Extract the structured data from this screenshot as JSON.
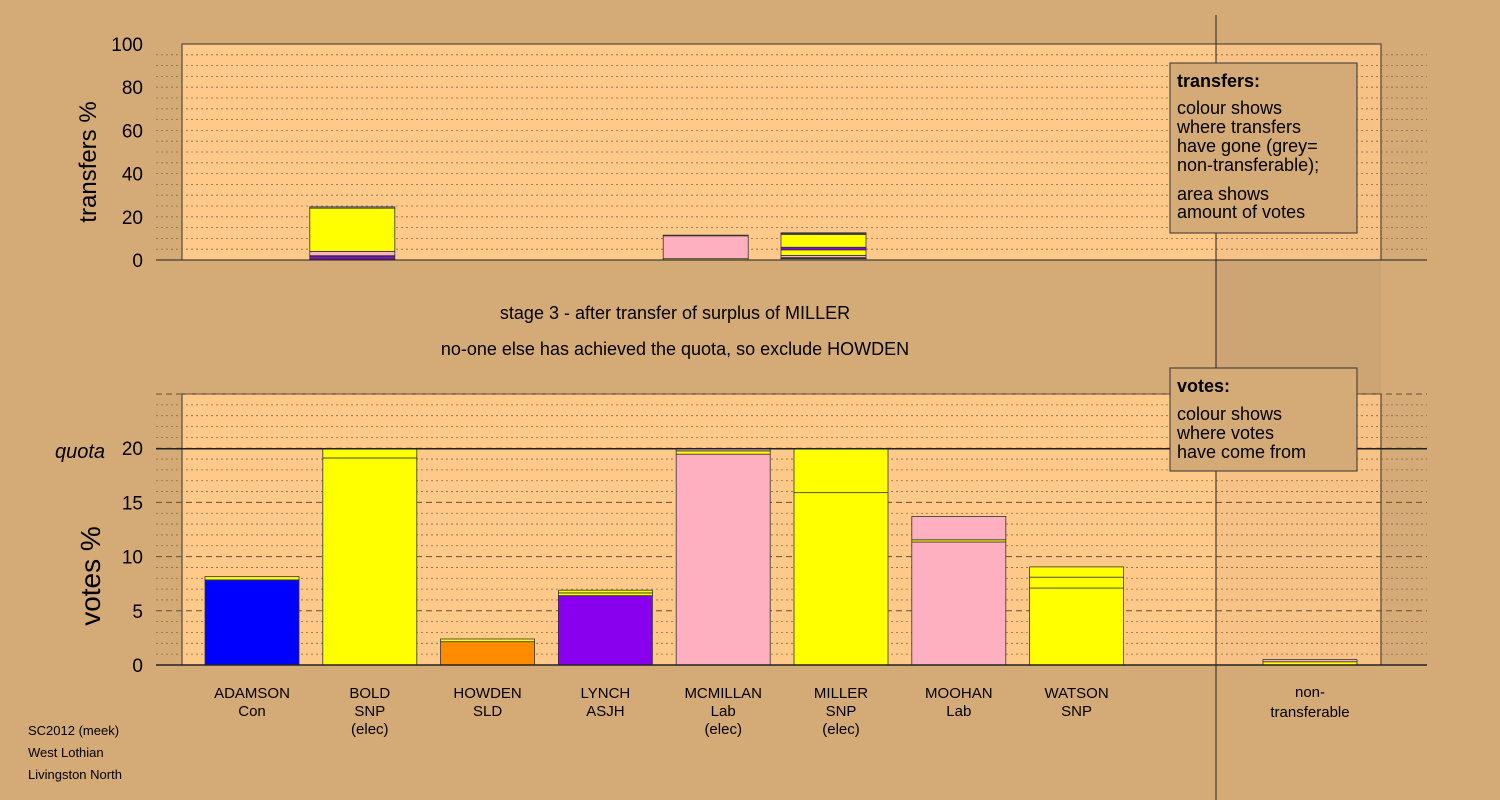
{
  "chart_data": [
    {
      "type": "bar",
      "stacked": true,
      "ylabel": "transfers %",
      "ylim": [
        0,
        100
      ],
      "yticks": [
        "0",
        "20",
        "40",
        "60",
        "80",
        "100"
      ],
      "grid": true,
      "legend": {
        "title": "transfers:",
        "lines_a": [
          "colour shows",
          "where transfers",
          "have gone (grey=",
          "non-transferable);"
        ],
        "lines_b": [
          "area shows",
          "amount of votes"
        ]
      },
      "bars": [
        {
          "candidate": "BOLD",
          "segments": [
            {
              "value": 0.4,
              "color": "#0000ff"
            },
            {
              "value": 1.2,
              "color": "#8800ee"
            },
            {
              "value": 0.4,
              "color": "#ff9900"
            },
            {
              "value": 2.0,
              "color": "#ffb0c0"
            },
            {
              "value": 20.0,
              "color": "#ffff00"
            },
            {
              "value": 0.6,
              "color": "#a0a0a0"
            }
          ]
        },
        {
          "candidate": "MCMILLAN",
          "segments": [
            {
              "value": 0.6,
              "color": "#ffff00"
            },
            {
              "value": 10.6,
              "color": "#ffb0c0"
            },
            {
              "value": 0.3,
              "color": "#a0a0a0"
            }
          ]
        },
        {
          "candidate": "MILLER",
          "segments": [
            {
              "value": 0.6,
              "color": "#ffff00"
            },
            {
              "value": 0.5,
              "color": "#0000ff"
            },
            {
              "value": 1.0,
              "color": "#ffb0c0"
            },
            {
              "value": 2.6,
              "color": "#ffff00"
            },
            {
              "value": 1.2,
              "color": "#8800ee"
            },
            {
              "value": 5.9,
              "color": "#ffff00"
            },
            {
              "value": 0.5,
              "color": "#ffb0c0"
            },
            {
              "value": 0.3,
              "color": "#a0a0a0"
            }
          ]
        }
      ]
    },
    {
      "type": "bar",
      "stacked": true,
      "ylabel": "votes %",
      "ylim": [
        0,
        25
      ],
      "yticks": [
        "0",
        "5",
        "10",
        "15",
        "20"
      ],
      "quota": 19.95,
      "quota_label": "quota",
      "grid": true,
      "legend": {
        "title": "votes:",
        "lines": [
          "colour shows",
          "where votes",
          "have come from"
        ]
      },
      "categories": [
        {
          "name": "ADAMSON",
          "party": "Con",
          "status": ""
        },
        {
          "name": "BOLD",
          "party": "SNP",
          "status": "(elec)"
        },
        {
          "name": "HOWDEN",
          "party": "SLD",
          "status": ""
        },
        {
          "name": "LYNCH",
          "party": "ASJH",
          "status": ""
        },
        {
          "name": "MCMILLAN",
          "party": "Lab",
          "status": "(elec)"
        },
        {
          "name": "MILLER",
          "party": "SNP",
          "status": "(elec)"
        },
        {
          "name": "MOOHAN",
          "party": "Lab",
          "status": ""
        },
        {
          "name": "WATSON",
          "party": "SNP",
          "status": ""
        }
      ],
      "nontransferable_label": [
        "non-",
        "transferable"
      ],
      "bars": [
        {
          "candidate": "ADAMSON",
          "segments": [
            {
              "value": 7.85,
              "color": "#0000ff"
            },
            {
              "value": 0.3,
              "color": "#ffff00"
            }
          ]
        },
        {
          "candidate": "BOLD",
          "segments": [
            {
              "value": 19.1,
              "color": "#ffff00"
            },
            {
              "value": 0.85,
              "color": "#ffff00"
            }
          ]
        },
        {
          "candidate": "HOWDEN",
          "segments": [
            {
              "value": 2.15,
              "color": "#ff8c00"
            },
            {
              "value": 0.25,
              "color": "#ffff00"
            }
          ]
        },
        {
          "candidate": "LYNCH",
          "segments": [
            {
              "value": 6.4,
              "color": "#8800ee"
            },
            {
              "value": 0.25,
              "color": "#ffff00"
            },
            {
              "value": 0.25,
              "color": "#ffff00"
            }
          ]
        },
        {
          "candidate": "MCMILLAN",
          "segments": [
            {
              "value": 19.45,
              "color": "#ffb0c0"
            },
            {
              "value": 0.3,
              "color": "#ffff00"
            },
            {
              "value": 0.2,
              "color": "#ffb0c0"
            }
          ]
        },
        {
          "candidate": "MILLER",
          "segments": [
            {
              "value": 15.9,
              "color": "#ffff00"
            },
            {
              "value": 4.05,
              "color": "#ffff00"
            }
          ]
        },
        {
          "candidate": "MOOHAN",
          "segments": [
            {
              "value": 11.35,
              "color": "#ffb0c0"
            },
            {
              "value": 0.2,
              "color": "#ffff00"
            },
            {
              "value": 2.15,
              "color": "#ffb0c0"
            }
          ]
        },
        {
          "candidate": "WATSON",
          "segments": [
            {
              "value": 7.1,
              "color": "#ffff00"
            },
            {
              "value": 1.0,
              "color": "#ffff00"
            },
            {
              "value": 0.95,
              "color": "#ffff00"
            }
          ]
        }
      ],
      "nontransferable": {
        "segments": [
          {
            "value": 0.3,
            "color": "#ffff00"
          },
          {
            "value": 0.2,
            "color": "#ffb0c0"
          }
        ]
      }
    }
  ],
  "stage": {
    "line1": "stage 3 - after transfer of surplus of MILLER",
    "line2": "no-one else has achieved the quota, so exclude HOWDEN"
  },
  "footer": {
    "line1": "SC2012 (meek)",
    "line2": "West Lothian",
    "line3": "Livingston North"
  },
  "colors": {
    "background": "#d4aa77",
    "plot_background": "#ffc98a",
    "grid": "#8a6a48"
  }
}
